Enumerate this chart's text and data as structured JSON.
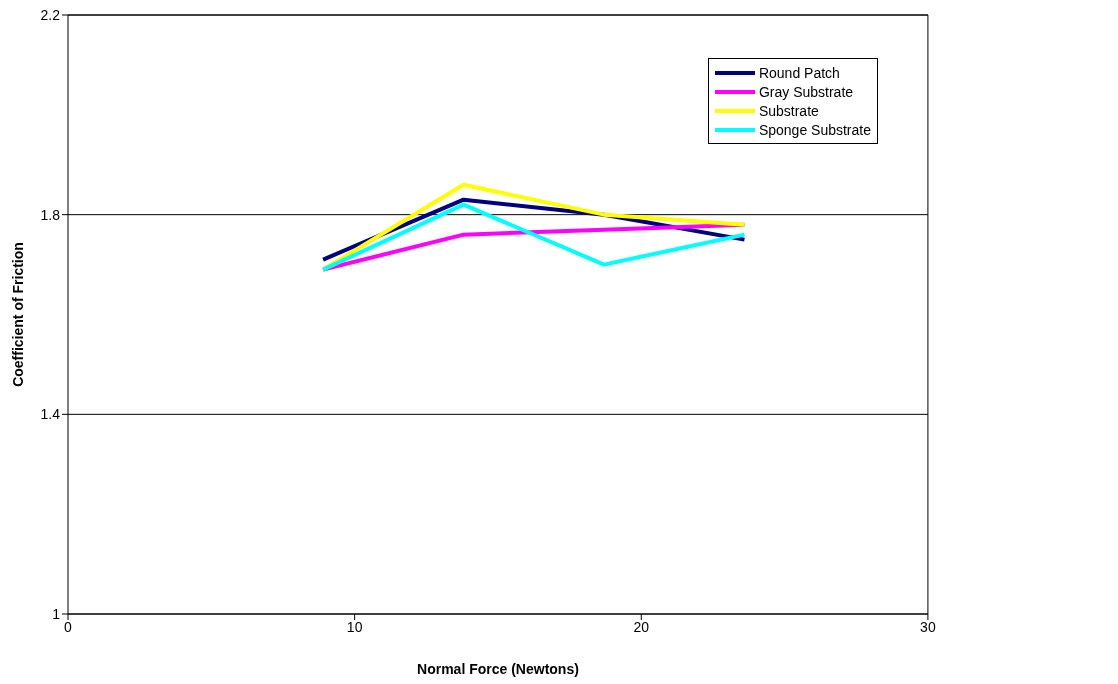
{
  "chart_data": {
    "type": "line",
    "xlabel": "Normal Force (Newtons)",
    "ylabel": "Coefficient of Friction",
    "x": [
      8.9,
      13.8,
      18.7,
      23.6
    ],
    "series": [
      {
        "name": "Round Patch",
        "color": "#000080",
        "values": [
          1.71,
          1.83,
          1.8,
          1.75
        ]
      },
      {
        "name": "Gray Substrate",
        "color": "#ff00ff",
        "values": [
          1.69,
          1.76,
          1.77,
          1.78
        ]
      },
      {
        "name": "Substrate",
        "color": "#ffff00",
        "values": [
          1.69,
          1.86,
          1.8,
          1.78
        ]
      },
      {
        "name": "Sponge Substrate",
        "color": "#00ffff",
        "values": [
          1.69,
          1.82,
          1.7,
          1.76
        ]
      }
    ],
    "xlim": [
      0,
      30
    ],
    "xticks": [
      0,
      10,
      20,
      30
    ],
    "ylim": [
      1,
      2.2
    ],
    "yticks": [
      1,
      1.4,
      1.8,
      2.2
    ],
    "grid": "y",
    "legend": "top right",
    "marker": "none",
    "line_style": "solid"
  }
}
